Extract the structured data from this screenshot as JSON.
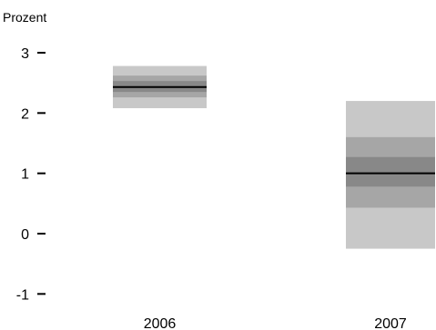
{
  "chart_data": {
    "type": "fan",
    "unit_label": "Prozent",
    "categories": [
      "2006",
      "2007"
    ],
    "yticks": [
      3,
      2,
      1,
      0,
      -1
    ],
    "ylim": [
      -1,
      3
    ],
    "grid": false,
    "series": [
      {
        "category": "2006",
        "median": 2.43,
        "bands": [
          {
            "low": 2.08,
            "high": 2.78
          },
          {
            "low": 2.26,
            "high": 2.62
          },
          {
            "low": 2.35,
            "high": 2.53
          }
        ]
      },
      {
        "category": "2007",
        "median": 1.0,
        "bands": [
          {
            "low": -0.25,
            "high": 2.2
          },
          {
            "low": 0.43,
            "high": 1.6
          },
          {
            "low": 0.78,
            "high": 1.27
          }
        ]
      }
    ]
  },
  "colors": {
    "band_outer": "#c8c8c8",
    "band_mid": "#a6a6a6",
    "band_inner": "#888888",
    "median": "#000000"
  }
}
